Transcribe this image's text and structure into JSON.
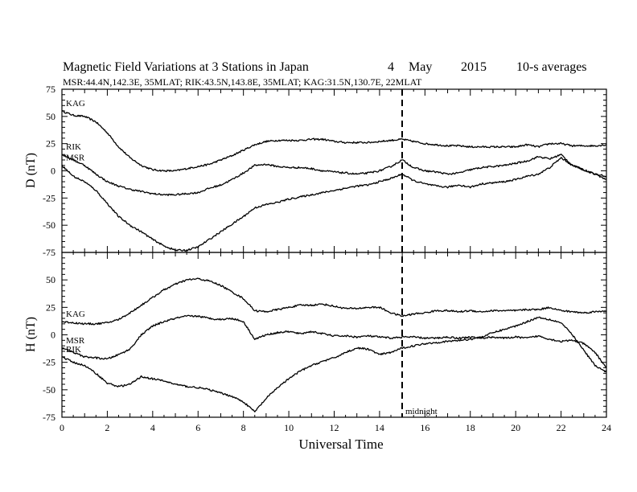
{
  "header": {
    "title": "Magnetic Field Variations at 3 Stations in Japan",
    "day": "4",
    "month": "May",
    "year": "2015",
    "averaging": "10-s averages",
    "stations_line": "MSR:44.4N,142.3E, 35MLAT;  RIK:43.5N,143.8E, 35MLAT;  KAG:31.5N,130.7E, 22MLAT"
  },
  "chart_data": [
    {
      "type": "line",
      "ylabel": "D (nT)",
      "ylim": [
        -75,
        75
      ],
      "xlim": [
        0,
        24
      ],
      "yticks": [
        "75",
        "50",
        "25",
        "0",
        "-25",
        "-50",
        "-75"
      ],
      "series": [
        {
          "name": "KAG",
          "x": [
            0,
            0.5,
            1,
            1.5,
            2,
            2.5,
            3,
            3.5,
            4,
            4.5,
            5,
            5.5,
            6,
            6.5,
            7,
            7.5,
            8,
            8.5,
            9,
            9.5,
            10,
            10.5,
            11,
            11.5,
            12,
            12.5,
            13,
            13.5,
            14,
            14.5,
            15,
            15.5,
            16,
            16.5,
            17,
            17.5,
            18,
            18.5,
            19,
            19.5,
            20,
            20.5,
            21,
            21.5,
            22,
            22.5,
            23,
            23.5,
            24
          ],
          "y": [
            55,
            51,
            50,
            45,
            35,
            22,
            12,
            5,
            1,
            0,
            0,
            2,
            4,
            6,
            10,
            14,
            19,
            24,
            27,
            28,
            28,
            28,
            29,
            29,
            27,
            26,
            26,
            26,
            27,
            28,
            29,
            27,
            25,
            24,
            23,
            23,
            22,
            22,
            22,
            22,
            22,
            24,
            22,
            25,
            25,
            23,
            23,
            23,
            24
          ]
        },
        {
          "name": "RIK",
          "x": [
            0,
            0.5,
            1,
            1.5,
            2,
            2.5,
            3,
            3.5,
            4,
            4.5,
            5,
            5.5,
            6,
            6.5,
            7,
            7.5,
            8,
            8.5,
            9,
            9.5,
            10,
            10.5,
            11,
            11.5,
            12,
            12.5,
            13,
            13.5,
            14,
            14.5,
            15,
            15.5,
            16,
            16.5,
            17,
            17.5,
            18,
            18.5,
            19,
            19.5,
            20,
            20.5,
            21,
            21.5,
            22,
            22.5,
            23,
            23.5,
            24
          ],
          "y": [
            15,
            10,
            5,
            -3,
            -10,
            -14,
            -17,
            -19,
            -21,
            -22,
            -22,
            -21,
            -20,
            -16,
            -13,
            -8,
            -2,
            5,
            6,
            4,
            3,
            3,
            2,
            0,
            -1,
            -2,
            -3,
            -2,
            0,
            4,
            10,
            3,
            0,
            -1,
            -3,
            -2,
            1,
            3,
            4,
            5,
            7,
            9,
            13,
            11,
            15,
            5,
            1,
            -3,
            -5
          ]
        },
        {
          "name": "MSR",
          "x": [
            0,
            0.5,
            1,
            1.5,
            2,
            2.5,
            3,
            3.5,
            4,
            4.5,
            5,
            5.5,
            6,
            6.5,
            7,
            7.5,
            8,
            8.5,
            9,
            9.5,
            10,
            10.5,
            11,
            11.5,
            12,
            12.5,
            13,
            13.5,
            14,
            14.5,
            15,
            15.5,
            16,
            16.5,
            17,
            17.5,
            18,
            18.5,
            19,
            19.5,
            20,
            20.5,
            21,
            21.5,
            22,
            22.5,
            23,
            23.5,
            24
          ],
          "y": [
            5,
            -5,
            -10,
            -18,
            -30,
            -42,
            -50,
            -56,
            -63,
            -69,
            -73,
            -73,
            -70,
            -63,
            -56,
            -49,
            -42,
            -34,
            -31,
            -29,
            -26,
            -24,
            -22,
            -20,
            -18,
            -16,
            -14,
            -13,
            -10,
            -7,
            -3,
            -9,
            -12,
            -14,
            -15,
            -13,
            -15,
            -12,
            -11,
            -10,
            -8,
            -5,
            -3,
            3,
            12,
            5,
            1,
            -3,
            -8
          ]
        }
      ]
    },
    {
      "type": "line",
      "ylabel": "H (nT)",
      "ylim": [
        -75,
        75
      ],
      "xlim": [
        0,
        24
      ],
      "xlabel": "Universal Time",
      "xticks": [
        "0",
        "2",
        "4",
        "6",
        "8",
        "10",
        "12",
        "14",
        "16",
        "18",
        "20",
        "22",
        "24"
      ],
      "yticks": [
        "",
        "50",
        "25",
        "0",
        "-25",
        "-50",
        "-75"
      ],
      "series": [
        {
          "name": "KAG",
          "x": [
            0,
            0.5,
            1,
            1.5,
            2,
            2.5,
            3,
            3.5,
            4,
            4.5,
            5,
            5.5,
            6,
            6.5,
            7,
            7.5,
            8,
            8.5,
            9,
            9.5,
            10,
            10.5,
            11,
            11.5,
            12,
            12.5,
            13,
            13.5,
            14,
            14.5,
            15,
            15.5,
            16,
            16.5,
            17,
            17.5,
            18,
            18.5,
            19,
            19.5,
            20,
            20.5,
            21,
            21.5,
            22,
            22.5,
            23,
            23.5,
            24
          ],
          "y": [
            12,
            11,
            10,
            10,
            11,
            14,
            20,
            27,
            34,
            41,
            46,
            50,
            51,
            49,
            45,
            39,
            33,
            22,
            21,
            23,
            25,
            27,
            27,
            28,
            26,
            24,
            24,
            25,
            25,
            20,
            17,
            19,
            20,
            22,
            22,
            21,
            22,
            21,
            22,
            22,
            22,
            23,
            23,
            25,
            22,
            21,
            20,
            21,
            22
          ]
        },
        {
          "name": "MSR",
          "x": [
            0,
            0.5,
            1,
            1.5,
            2,
            2.5,
            3,
            3.5,
            4,
            4.5,
            5,
            5.5,
            6,
            6.5,
            7,
            7.5,
            8,
            8.5,
            9,
            9.5,
            10,
            10.5,
            11,
            11.5,
            12,
            12.5,
            13,
            13.5,
            14,
            14.5,
            15,
            15.5,
            16,
            16.5,
            17,
            17.5,
            18,
            18.5,
            19,
            19.5,
            20,
            20.5,
            21,
            21.5,
            22,
            22.5,
            23,
            23.5,
            24
          ],
          "y": [
            -12,
            -16,
            -20,
            -21,
            -22,
            -18,
            -13,
            0,
            8,
            12,
            15,
            17,
            17,
            15,
            14,
            15,
            12,
            -4,
            0,
            2,
            3,
            1,
            3,
            1,
            -1,
            -1,
            -2,
            -1,
            -2,
            -3,
            -2,
            -2,
            -3,
            -3,
            -2,
            -3,
            -2,
            -3,
            -2,
            -3,
            -2,
            -3,
            -1,
            -4,
            -6,
            -5,
            -8,
            -16,
            -30
          ]
        },
        {
          "name": "RIK",
          "x": [
            0,
            0.5,
            1,
            1.5,
            2,
            2.5,
            3,
            3.5,
            4,
            4.5,
            5,
            5.5,
            6,
            6.5,
            7,
            7.5,
            8,
            8.5,
            9,
            9.5,
            10,
            10.5,
            11,
            11.5,
            12,
            12.5,
            13,
            13.5,
            14,
            14.5,
            15,
            15.5,
            16,
            16.5,
            17,
            17.5,
            18,
            18.5,
            19,
            19.5,
            20,
            20.5,
            21,
            21.5,
            22,
            22.5,
            23,
            23.5,
            24
          ],
          "y": [
            -20,
            -25,
            -28,
            -35,
            -44,
            -47,
            -45,
            -38,
            -40,
            -42,
            -45,
            -47,
            -48,
            -50,
            -53,
            -56,
            -61,
            -70,
            -58,
            -48,
            -40,
            -33,
            -28,
            -24,
            -21,
            -16,
            -12,
            -13,
            -18,
            -16,
            -12,
            -10,
            -8,
            -7,
            -6,
            -5,
            -4,
            -2,
            2,
            5,
            8,
            12,
            16,
            14,
            11,
            0,
            -14,
            -28,
            -34
          ]
        }
      ]
    }
  ],
  "annotations": {
    "midnight_label": "midnight",
    "midnight_ut": 15
  }
}
